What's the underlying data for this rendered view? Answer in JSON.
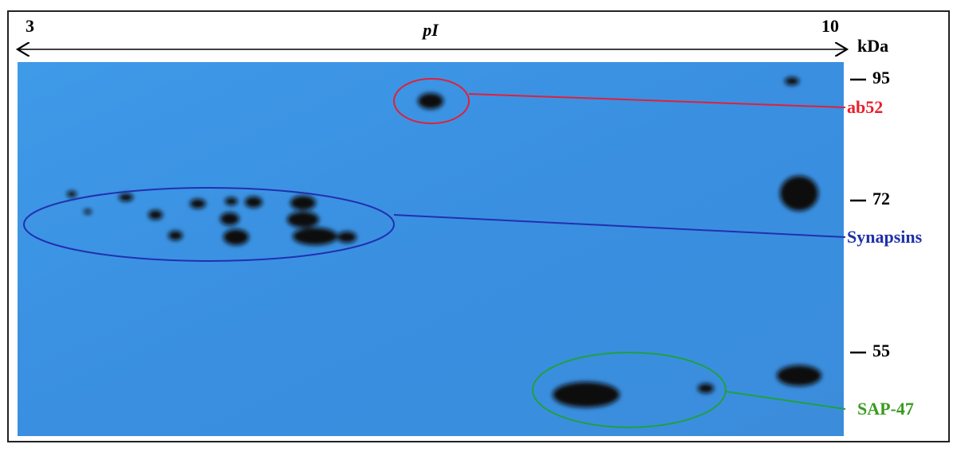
{
  "axis": {
    "left": "3",
    "right": "10",
    "label": "pI",
    "unit": "kDa"
  },
  "markers": [
    "95",
    "72",
    "55"
  ],
  "annotations": [
    {
      "label": "ab52"
    },
    {
      "label": "Synapsins"
    },
    {
      "label": "SAP-47"
    }
  ]
}
